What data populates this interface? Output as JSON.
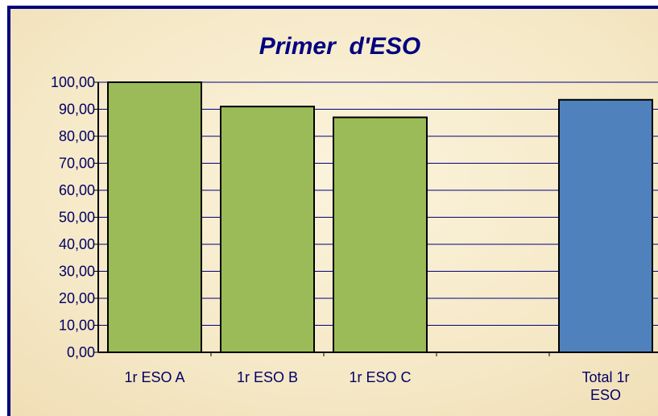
{
  "chart_data": {
    "type": "bar",
    "title": "Primer  d'ESO",
    "categories": [
      "1r ESO A",
      "1r ESO B",
      "1r ESO C",
      null,
      "Total 1r ESO"
    ],
    "values": [
      100,
      91,
      87,
      null,
      93.5
    ],
    "colors": [
      "#9bbb59",
      "#9bbb59",
      "#9bbb59",
      null,
      "#4f81bd"
    ],
    "ylim": [
      0,
      100
    ],
    "yticks": [
      {
        "value": 0,
        "label": "0,00"
      },
      {
        "value": 10,
        "label": "10,00"
      },
      {
        "value": 20,
        "label": "20,00"
      },
      {
        "value": 30,
        "label": "30,00"
      },
      {
        "value": 40,
        "label": "40,00"
      },
      {
        "value": 50,
        "label": "50,00"
      },
      {
        "value": 60,
        "label": "60,00"
      },
      {
        "value": 70,
        "label": "70,00"
      },
      {
        "value": 80,
        "label": "80,00"
      },
      {
        "value": 90,
        "label": "90,00"
      },
      {
        "value": 100,
        "label": "100,00"
      }
    ],
    "grid": true
  }
}
